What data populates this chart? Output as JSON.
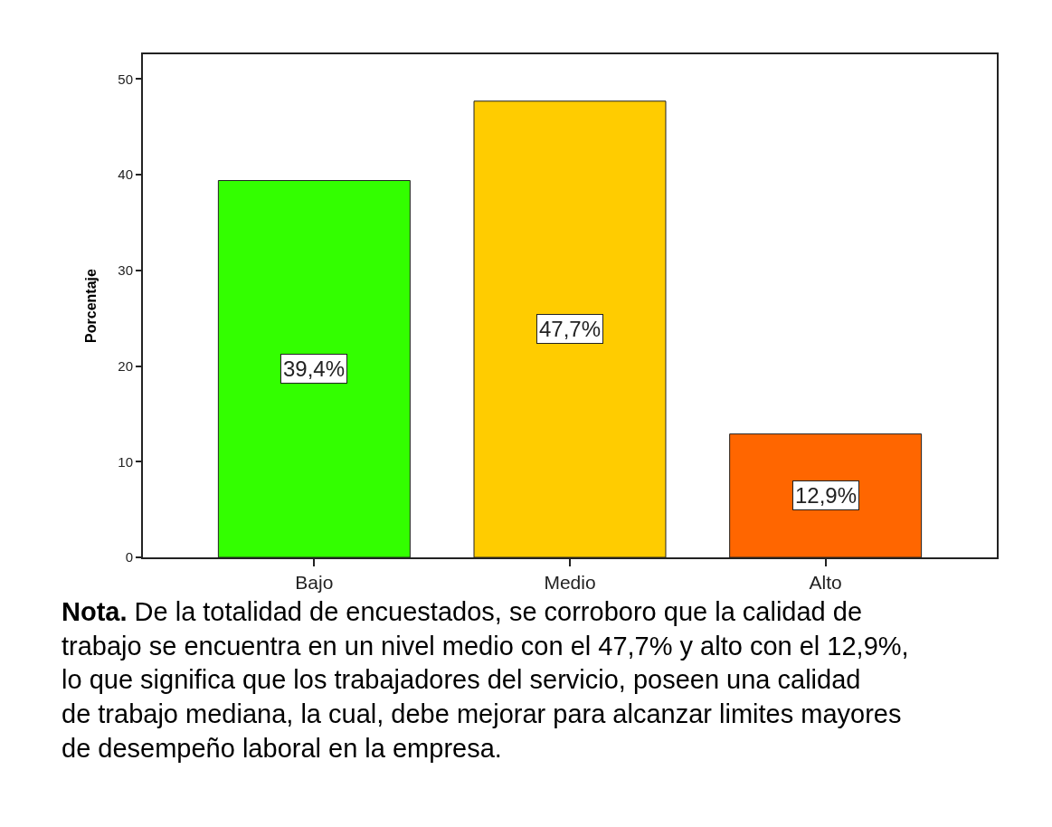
{
  "chart_data": {
    "type": "bar",
    "categories": [
      "Bajo",
      "Medio",
      "Alto"
    ],
    "values": [
      39.4,
      47.7,
      12.9
    ],
    "colors": [
      "#33ff00",
      "#ffcc00",
      "#ff6600"
    ],
    "value_labels": [
      "39,4%",
      "47,7%",
      "12,9%"
    ],
    "ylabel": "Porcentaje",
    "ylim": [
      0,
      52.6
    ],
    "yticks": [
      0,
      10,
      20,
      30,
      40,
      50
    ],
    "annotations": [
      "Nota. De la totalidad de encuestados, se corroboro que la calidad de trabajo se encuentra en un nivel medio con el 47,7% y alto con el 12,9%, lo que significa que los trabajadores del servicio, poseen una calidad de trabajo mediana, la cual, debe mejorar para alcanzar limites mayores de desempeño laboral en la empresa."
    ]
  }
}
